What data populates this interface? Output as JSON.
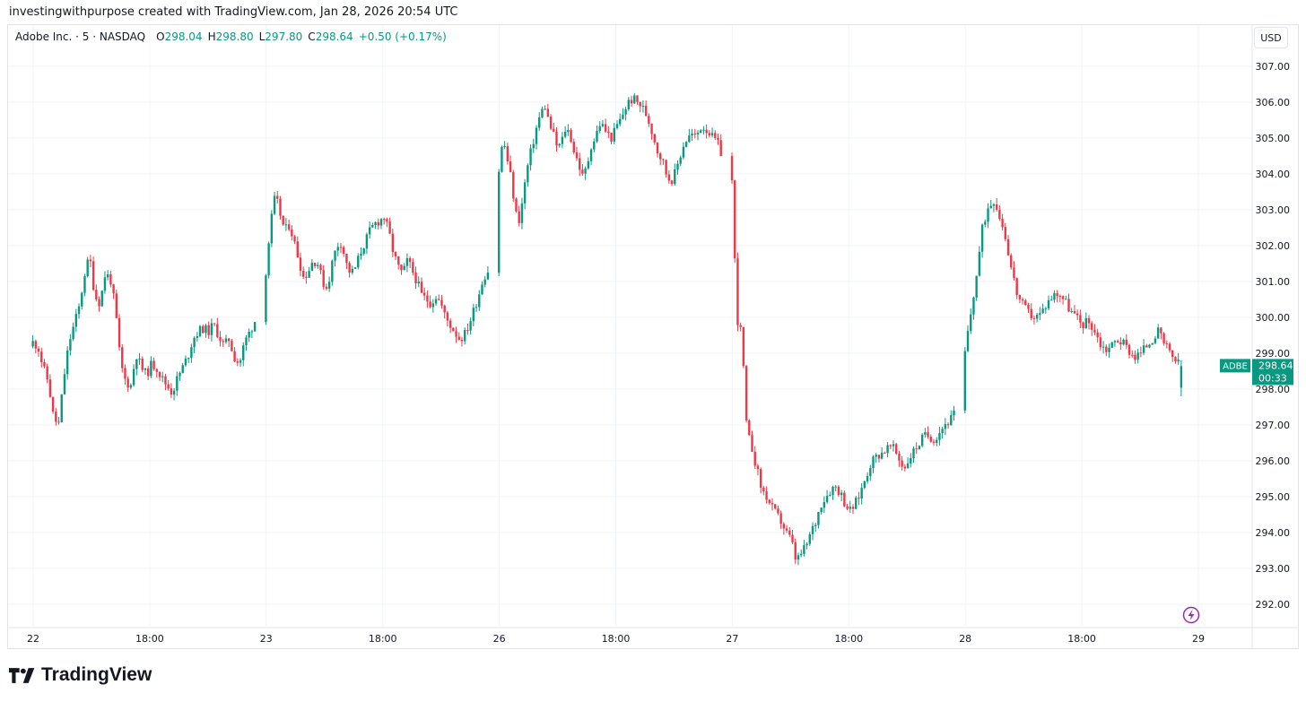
{
  "attribution": "investingwithpurpose created with TradingView.com, Jan 28, 2026 20:54 UTC",
  "legend": {
    "title": "Adobe Inc. · 5 · NASDAQ",
    "open_label": "O",
    "open": "298.04",
    "high_label": "H",
    "high": "298.80",
    "low_label": "L",
    "low": "297.80",
    "close_label": "C",
    "close": "298.64",
    "change": "+0.50 (+0.17%)"
  },
  "currency": "USD",
  "price_tag": {
    "symbol": "ADBE",
    "price": "298.64",
    "countdown": "00:33"
  },
  "footer": {
    "brand": "TradingView"
  },
  "colors": {
    "up": "#089981",
    "down": "#f23645",
    "grid": "#f0f3fa",
    "text": "#131722",
    "tag": "#089981",
    "alert": "#9c27b0"
  },
  "icons": {
    "alert": "lightning-icon",
    "logo": "tradingview-logo-icon"
  },
  "chart_data": {
    "type": "candlestick",
    "ylim": [
      291.4,
      307.4
    ],
    "y_ticks": [
      "292.00",
      "293.00",
      "294.00",
      "295.00",
      "296.00",
      "297.00",
      "298.00",
      "299.00",
      "300.00",
      "301.00",
      "302.00",
      "303.00",
      "304.00",
      "305.00",
      "306.00",
      "307.00"
    ],
    "x_ticks": [
      {
        "label": "22",
        "day": 0.0
      },
      {
        "label": "18:00",
        "day": 0.5
      },
      {
        "label": "23",
        "day": 1.0
      },
      {
        "label": "18:00",
        "day": 1.5
      },
      {
        "label": "26",
        "day": 2.0
      },
      {
        "label": "18:00",
        "day": 2.5
      },
      {
        "label": "27",
        "day": 3.0
      },
      {
        "label": "18:00",
        "day": 3.5
      },
      {
        "label": "28",
        "day": 4.0
      },
      {
        "label": "18:00",
        "day": 4.5
      },
      {
        "label": "29",
        "day": 5.0
      }
    ],
    "session_days": [
      {
        "date": "Jan 22",
        "points": [
          [
            299.3,
            299.2
          ],
          [
            298.6,
            298.2
          ],
          [
            297.2,
            297.0
          ],
          [
            298.3,
            299.3
          ],
          [
            299.8,
            300.3
          ],
          [
            301.2,
            301.7
          ],
          [
            300.6,
            300.4
          ],
          [
            301.2,
            301.1
          ],
          [
            300.2,
            298.7
          ],
          [
            298.2,
            298.1
          ],
          [
            299.0,
            298.6
          ],
          [
            298.4,
            298.7
          ],
          [
            298.6,
            298.3
          ],
          [
            298.1,
            297.9
          ],
          [
            298.3,
            298.6
          ],
          [
            298.9,
            299.4
          ],
          [
            299.6,
            299.7
          ],
          [
            299.6,
            299.8
          ],
          [
            299.5,
            299.2
          ],
          [
            299.4,
            298.9
          ],
          [
            298.7,
            299.3
          ],
          [
            299.6,
            299.9
          ]
        ]
      },
      {
        "date": "Jan 23",
        "points": [
          [
            301.3,
            302.6
          ],
          [
            303.4,
            302.9
          ],
          [
            302.4,
            302.6
          ],
          [
            302.1,
            301.6
          ],
          [
            301.1,
            301.3
          ],
          [
            301.6,
            301.5
          ],
          [
            301.0,
            300.8
          ],
          [
            301.5,
            302.0
          ],
          [
            302.1,
            301.5
          ],
          [
            301.2,
            301.4
          ],
          [
            301.8,
            302.1
          ],
          [
            302.4,
            302.6
          ],
          [
            302.7,
            302.8
          ],
          [
            302.4,
            301.8
          ],
          [
            301.4,
            301.2
          ],
          [
            301.6,
            301.3
          ],
          [
            301.0,
            300.6
          ],
          [
            300.5,
            300.4
          ],
          [
            300.6,
            300.4
          ],
          [
            300.0,
            299.8
          ],
          [
            299.6,
            299.4
          ],
          [
            299.5,
            299.8
          ],
          [
            300.2,
            300.6
          ],
          [
            301.1,
            301.3
          ]
        ]
      },
      {
        "date": "Jan 26",
        "points": [
          [
            304.1,
            305.0
          ],
          [
            304.4,
            303.8
          ],
          [
            302.9,
            302.7
          ],
          [
            303.6,
            304.3
          ],
          [
            304.8,
            305.3
          ],
          [
            305.7,
            305.9
          ],
          [
            305.4,
            305.1
          ],
          [
            304.7,
            304.9
          ],
          [
            305.3,
            305.1
          ],
          [
            304.6,
            304.3
          ],
          [
            303.9,
            304.2
          ],
          [
            304.8,
            305.0
          ],
          [
            305.4,
            305.3
          ],
          [
            305.1,
            305.0
          ],
          [
            305.3,
            305.5
          ],
          [
            305.8,
            306.0
          ],
          [
            306.1,
            306.0
          ],
          [
            305.9,
            305.7
          ],
          [
            305.4,
            305.0
          ],
          [
            304.6,
            304.4
          ],
          [
            304.0,
            303.8
          ],
          [
            304.0,
            304.4
          ],
          [
            304.8,
            305.0
          ],
          [
            305.1,
            305.0
          ],
          [
            305.3,
            305.3
          ],
          [
            305.2,
            305.0
          ],
          [
            304.9,
            304.6
          ]
        ]
      },
      {
        "date": "Jan 27",
        "points": [
          [
            303.8,
            300.0
          ],
          [
            299.5,
            296.8
          ],
          [
            296.4,
            295.8
          ],
          [
            295.2,
            295.0
          ],
          [
            294.7,
            294.5
          ],
          [
            294.3,
            294.0
          ],
          [
            293.8,
            293.2
          ],
          [
            293.4,
            293.6
          ],
          [
            294.0,
            294.3
          ],
          [
            294.8,
            295.0
          ],
          [
            295.2,
            295.3
          ],
          [
            295.1,
            294.8
          ],
          [
            294.6,
            294.8
          ],
          [
            295.1,
            295.5
          ],
          [
            295.9,
            296.1
          ],
          [
            296.2,
            296.3
          ],
          [
            296.4,
            296.3
          ],
          [
            296.0,
            295.8
          ],
          [
            296.1,
            296.3
          ],
          [
            296.5,
            296.7
          ],
          [
            296.7,
            296.6
          ],
          [
            296.8,
            297.0
          ],
          [
            297.1,
            297.3
          ]
        ]
      },
      {
        "date": "Jan 28",
        "points": [
          [
            299.0,
            300.1
          ],
          [
            301.2,
            302.5
          ],
          [
            303.1,
            303.3
          ],
          [
            302.8,
            302.2
          ],
          [
            301.3,
            300.6
          ],
          [
            300.3,
            300.1
          ],
          [
            300.0,
            300.1
          ],
          [
            300.4,
            300.6
          ],
          [
            300.7,
            300.5
          ],
          [
            300.2,
            300.0
          ],
          [
            299.8,
            299.9
          ],
          [
            299.7,
            299.3
          ],
          [
            299.1,
            299.2
          ],
          [
            299.4,
            299.3
          ],
          [
            299.1,
            298.9
          ],
          [
            299.0,
            299.2
          ],
          [
            299.4,
            299.6
          ],
          [
            299.3,
            299.0
          ],
          [
            298.8,
            298.6
          ]
        ]
      }
    ],
    "last": {
      "open": 298.04,
      "high": 298.8,
      "low": 297.8,
      "close": 298.64
    }
  }
}
